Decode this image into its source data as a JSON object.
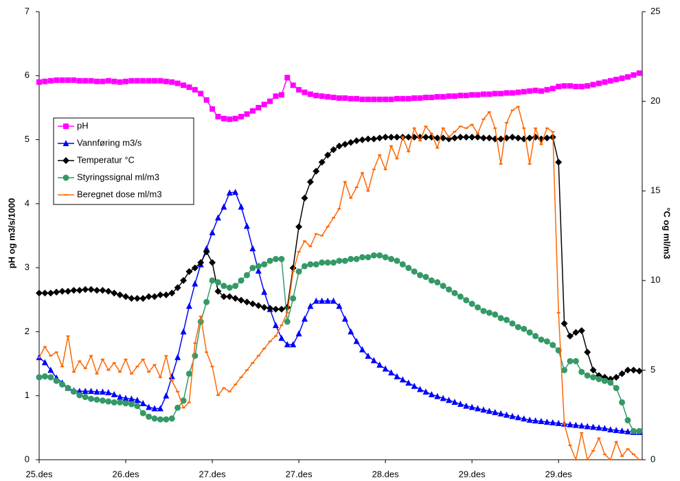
{
  "chart_data": {
    "type": "line",
    "y_label": "pH og m3/s/1000",
    "y2_label": "°C og ml/m3",
    "categories": [
      "25.des",
      null,
      null,
      null,
      null,
      null,
      null,
      null,
      null,
      null,
      null,
      null,
      null,
      null,
      null,
      "26.des",
      null,
      null,
      null,
      null,
      null,
      null,
      null,
      null,
      null,
      null,
      null,
      null,
      null,
      null,
      "27.des",
      null,
      null,
      null,
      null,
      null,
      null,
      null,
      null,
      null,
      null,
      null,
      null,
      null,
      null,
      "27.des",
      null,
      null,
      null,
      null,
      null,
      null,
      null,
      null,
      null,
      null,
      null,
      null,
      null,
      null,
      "28.des",
      null,
      null,
      null,
      null,
      null,
      null,
      null,
      null,
      null,
      null,
      null,
      null,
      null,
      null,
      "29.des",
      null,
      null,
      null,
      null,
      null,
      null,
      null,
      null,
      null,
      null,
      null,
      null,
      null,
      null,
      "29.des",
      null,
      null,
      null,
      null,
      null,
      null,
      null,
      null,
      null,
      null,
      null,
      null,
      null,
      null
    ],
    "ylim": [
      0,
      7
    ],
    "yticks": [
      0,
      1,
      2,
      3,
      4,
      5,
      6,
      7
    ],
    "y2lim": [
      0,
      25
    ],
    "y2ticks": [
      0,
      5,
      10,
      15,
      20,
      25
    ],
    "legend": "upper left",
    "series": [
      {
        "name": "pH",
        "color": "#ff00ff",
        "marker": "square",
        "axis": "y",
        "values": [
          5.9,
          5.91,
          5.92,
          5.93,
          5.93,
          5.93,
          5.93,
          5.92,
          5.92,
          5.92,
          5.91,
          5.91,
          5.92,
          5.91,
          5.9,
          5.91,
          5.92,
          5.92,
          5.92,
          5.92,
          5.92,
          5.92,
          5.91,
          5.9,
          5.88,
          5.85,
          5.82,
          5.78,
          5.72,
          5.62,
          5.48,
          5.36,
          5.33,
          5.32,
          5.33,
          5.36,
          5.4,
          5.45,
          5.5,
          5.55,
          5.6,
          5.68,
          5.7,
          5.97,
          5.85,
          5.78,
          5.74,
          5.71,
          5.69,
          5.68,
          5.67,
          5.66,
          5.65,
          5.65,
          5.64,
          5.64,
          5.63,
          5.63,
          5.63,
          5.63,
          5.63,
          5.63,
          5.64,
          5.64,
          5.64,
          5.65,
          5.65,
          5.66,
          5.66,
          5.67,
          5.67,
          5.68,
          5.68,
          5.69,
          5.69,
          5.7,
          5.7,
          5.71,
          5.71,
          5.72,
          5.72,
          5.73,
          5.73,
          5.74,
          5.75,
          5.76,
          5.77,
          5.76,
          5.78,
          5.8,
          5.83,
          5.84,
          5.84,
          5.83,
          5.83,
          5.84,
          5.86,
          5.88,
          5.9,
          5.92,
          5.94,
          5.96,
          5.98,
          6.01,
          6.04
        ]
      },
      {
        "name": "Vannføring m3/s",
        "color": "#0000ff",
        "marker": "triangle",
        "axis": "y",
        "values": [
          1.6,
          1.52,
          1.4,
          1.28,
          1.2,
          1.12,
          1.08,
          1.07,
          1.07,
          1.07,
          1.06,
          1.06,
          1.05,
          1.02,
          0.98,
          0.96,
          0.95,
          0.93,
          0.88,
          0.82,
          0.8,
          0.8,
          1.0,
          1.3,
          1.6,
          2.0,
          2.4,
          2.75,
          3.05,
          3.3,
          3.55,
          3.78,
          3.95,
          4.17,
          4.18,
          3.95,
          3.65,
          3.3,
          2.95,
          2.62,
          2.35,
          2.1,
          1.9,
          1.8,
          1.8,
          1.97,
          2.2,
          2.4,
          2.48,
          2.48,
          2.48,
          2.48,
          2.4,
          2.2,
          2.0,
          1.85,
          1.72,
          1.62,
          1.55,
          1.48,
          1.42,
          1.36,
          1.3,
          1.25,
          1.2,
          1.15,
          1.1,
          1.06,
          1.02,
          0.99,
          0.96,
          0.93,
          0.9,
          0.87,
          0.84,
          0.82,
          0.8,
          0.78,
          0.76,
          0.74,
          0.72,
          0.7,
          0.68,
          0.66,
          0.64,
          0.62,
          0.61,
          0.6,
          0.59,
          0.58,
          0.57,
          0.56,
          0.55,
          0.54,
          0.53,
          0.52,
          0.51,
          0.5,
          0.49,
          0.47,
          0.46,
          0.45,
          0.44,
          0.43,
          0.43
        ]
      },
      {
        "name": "Temperatur °C",
        "color": "#000000",
        "marker": "diamond",
        "axis": "y2",
        "values": [
          9.3,
          9.3,
          9.3,
          9.35,
          9.4,
          9.4,
          9.45,
          9.45,
          9.5,
          9.5,
          9.45,
          9.45,
          9.4,
          9.3,
          9.2,
          9.1,
          9.0,
          9.0,
          9.0,
          9.1,
          9.1,
          9.2,
          9.2,
          9.3,
          9.6,
          10.0,
          10.5,
          10.7,
          11.0,
          11.6,
          11.0,
          9.4,
          9.1,
          9.1,
          9.0,
          8.9,
          8.8,
          8.7,
          8.6,
          8.5,
          8.45,
          8.4,
          8.4,
          8.5,
          10.7,
          13.0,
          14.6,
          15.5,
          16.1,
          16.6,
          17.0,
          17.3,
          17.5,
          17.6,
          17.7,
          17.8,
          17.85,
          17.9,
          17.9,
          17.95,
          18,
          18,
          18,
          18,
          18,
          18,
          18,
          18,
          18,
          17.95,
          17.95,
          17.9,
          17.95,
          18,
          18,
          18,
          18,
          17.95,
          17.95,
          17.9,
          17.9,
          17.95,
          18,
          17.95,
          17.9,
          17.95,
          18,
          17.9,
          17.95,
          18,
          16.6,
          7.6,
          6.9,
          7.1,
          7.2,
          6.0,
          5.0,
          4.7,
          4.6,
          4.5,
          4.6,
          4.8,
          5.0,
          5.0,
          4.95
        ]
      },
      {
        "name": "Styringssignal ml/m3",
        "color": "#339966",
        "marker": "circle",
        "axis": "y2",
        "values": [
          4.6,
          4.65,
          4.6,
          4.4,
          4.2,
          4.0,
          3.8,
          3.6,
          3.5,
          3.4,
          3.35,
          3.3,
          3.25,
          3.2,
          3.2,
          3.15,
          3.1,
          3.0,
          2.6,
          2.4,
          2.3,
          2.25,
          2.25,
          2.3,
          2.9,
          3.3,
          4.8,
          5.8,
          7.7,
          8.8,
          10.0,
          9.9,
          9.7,
          9.6,
          9.7,
          10.0,
          10.3,
          10.7,
          10.8,
          10.9,
          11.1,
          11.2,
          11.2,
          7.7,
          9.0,
          10.5,
          10.8,
          10.9,
          10.9,
          11.0,
          11.0,
          11.0,
          11.1,
          11.1,
          11.2,
          11.2,
          11.3,
          11.3,
          11.4,
          11.4,
          11.3,
          11.2,
          11.1,
          10.9,
          10.7,
          10.5,
          10.3,
          10.2,
          10.0,
          9.9,
          9.7,
          9.5,
          9.3,
          9.1,
          8.9,
          8.7,
          8.5,
          8.3,
          8.2,
          8.1,
          7.9,
          7.8,
          7.6,
          7.4,
          7.3,
          7.1,
          6.9,
          6.7,
          6.6,
          6.4,
          6.1,
          5.0,
          5.5,
          5.5,
          4.9,
          4.7,
          4.6,
          4.5,
          4.4,
          4.3,
          4.0,
          3.2,
          2.2,
          1.6,
          1.6
        ]
      },
      {
        "name": "Beregnet dose ml/m3",
        "color": "#ff6600",
        "marker": "dash",
        "axis": "y2",
        "values": [
          5.7,
          6.3,
          5.8,
          6.0,
          5.2,
          6.9,
          4.9,
          5.5,
          5.1,
          5.8,
          4.8,
          5.6,
          5.0,
          5.4,
          4.9,
          5.6,
          4.8,
          5.2,
          5.6,
          4.9,
          5.3,
          4.6,
          5.8,
          4.4,
          3.8,
          2.9,
          3.2,
          6.5,
          8.0,
          6.0,
          5.2,
          3.6,
          4.0,
          3.8,
          4.2,
          4.6,
          5.0,
          5.4,
          5.8,
          6.2,
          6.6,
          6.9,
          7.5,
          8.2,
          10.5,
          11.6,
          12.2,
          11.9,
          12.6,
          12.5,
          13.0,
          13.5,
          14.0,
          15.5,
          14.6,
          15.2,
          16.0,
          15.0,
          16.2,
          17.0,
          16.2,
          17.5,
          16.8,
          18.0,
          17.2,
          18.5,
          17.8,
          18.6,
          18.2,
          17.4,
          18.5,
          18.0,
          18.3,
          18.6,
          18.5,
          18.7,
          18.2,
          19.0,
          19.4,
          18.5,
          16.5,
          18.8,
          19.5,
          19.7,
          18.5,
          16.5,
          18.5,
          17.6,
          18.5,
          18.3,
          8.2,
          2.0,
          0.8,
          0,
          1.5,
          0,
          0.5,
          1.2,
          0.3,
          0,
          1.0,
          0.2,
          0.6,
          0.3,
          0
        ]
      }
    ]
  }
}
